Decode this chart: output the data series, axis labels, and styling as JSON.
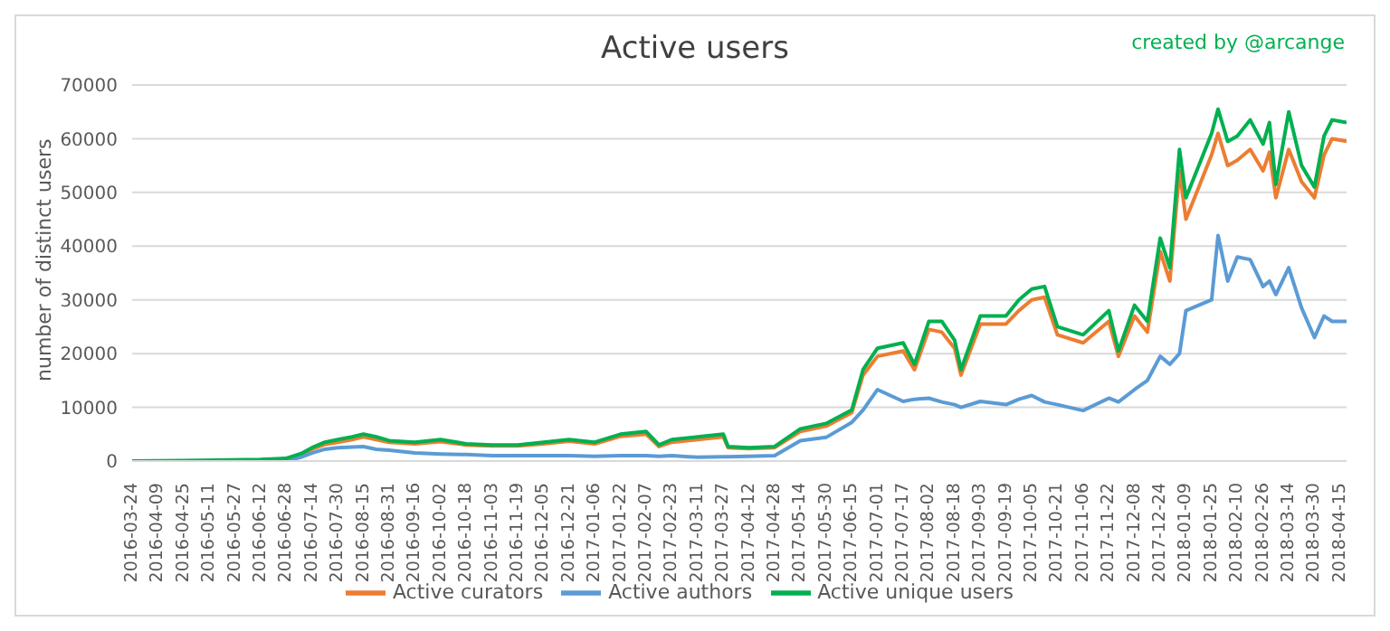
{
  "chart_data": {
    "type": "line",
    "title": "Active users",
    "ylabel": "number of distinct users",
    "annotations": [
      "created by @arcange"
    ],
    "x": [
      "2016-03-24",
      "2016-04-25",
      "2016-06-12",
      "2016-06-28",
      "2016-07-08",
      "2016-07-14",
      "2016-07-22",
      "2016-07-30",
      "2016-08-08",
      "2016-08-15",
      "2016-08-23",
      "2016-08-31",
      "2016-09-16",
      "2016-10-02",
      "2016-10-18",
      "2016-11-03",
      "2016-11-19",
      "2016-12-05",
      "2016-12-21",
      "2017-01-06",
      "2017-01-22",
      "2017-02-07",
      "2017-02-15",
      "2017-02-23",
      "2017-03-11",
      "2017-03-27",
      "2017-03-30",
      "2017-04-12",
      "2017-04-28",
      "2017-05-14",
      "2017-05-30",
      "2017-06-15",
      "2017-06-22",
      "2017-07-01",
      "2017-07-17",
      "2017-07-24",
      "2017-08-02",
      "2017-08-10",
      "2017-08-18",
      "2017-08-22",
      "2017-09-03",
      "2017-09-19",
      "2017-09-27",
      "2017-10-05",
      "2017-10-13",
      "2017-10-21",
      "2017-11-06",
      "2017-11-22",
      "2017-11-28",
      "2017-12-08",
      "2017-12-16",
      "2017-12-24",
      "2017-12-30",
      "2018-01-05",
      "2018-01-09",
      "2018-01-17",
      "2018-01-25",
      "2018-01-29",
      "2018-02-04",
      "2018-02-10",
      "2018-02-18",
      "2018-02-26",
      "2018-03-02",
      "2018-03-06",
      "2018-03-14",
      "2018-03-22",
      "2018-03-30",
      "2018-04-05",
      "2018-04-10",
      "2018-04-19"
    ],
    "series": [
      {
        "name": "Active curators",
        "color": "#ed7d31",
        "values": [
          null,
          null,
          null,
          500,
          1300,
          2200,
          3100,
          3500,
          4000,
          4500,
          4000,
          3500,
          3200,
          3600,
          3000,
          2800,
          2800,
          3200,
          3700,
          3200,
          4600,
          5000,
          2700,
          3500,
          4000,
          4500,
          2500,
          2300,
          2500,
          5500,
          6500,
          9000,
          16000,
          19500,
          20500,
          17000,
          24500,
          24000,
          21000,
          16000,
          25500,
          25500,
          28000,
          30000,
          30500,
          23500,
          22000,
          26000,
          19500,
          27000,
          24000,
          39000,
          33500,
          54000,
          45000,
          51000,
          57000,
          61000,
          55000,
          56000,
          58000,
          54000,
          57500,
          49000,
          58000,
          52000,
          49000,
          57000,
          60000,
          59500
        ]
      },
      {
        "name": "Active authors",
        "color": "#5b9bd5",
        "values": [
          null,
          null,
          null,
          0,
          800,
          1500,
          2200,
          2500,
          2600,
          2700,
          2200,
          2000,
          1500,
          1300,
          1200,
          1000,
          1000,
          1000,
          1000,
          900,
          1000,
          1000,
          900,
          1000,
          700,
          800,
          800,
          900,
          1000,
          3800,
          4400,
          7200,
          9500,
          13300,
          11100,
          11500,
          11700,
          11000,
          10500,
          10000,
          11100,
          10500,
          11500,
          12200,
          11000,
          10500,
          9400,
          11700,
          11000,
          13300,
          15000,
          19500,
          18000,
          20000,
          28000,
          29000,
          30000,
          42000,
          33500,
          38000,
          37500,
          32500,
          33500,
          31000,
          36000,
          28500,
          23000,
          27000,
          26000,
          26000
        ]
      },
      {
        "name": "Active unique users",
        "color": "#00b050",
        "values": [
          0,
          100,
          300,
          500,
          1500,
          2500,
          3500,
          4000,
          4500,
          5000,
          4500,
          3800,
          3500,
          4000,
          3200,
          3000,
          3000,
          3500,
          4000,
          3500,
          5000,
          5500,
          3000,
          4000,
          4500,
          5000,
          2700,
          2500,
          2700,
          6000,
          7000,
          9500,
          17000,
          21000,
          22000,
          18000,
          26000,
          26000,
          22500,
          17000,
          27000,
          27000,
          30000,
          32000,
          32500,
          25000,
          23500,
          28000,
          20500,
          29000,
          26000,
          41500,
          36000,
          58000,
          49000,
          55000,
          61000,
          65500,
          59500,
          60500,
          63500,
          59000,
          63000,
          51500,
          65000,
          55000,
          51000,
          60500,
          63500,
          63000
        ]
      }
    ],
    "xlim": [
      "2016-03-24",
      "2018-04-19"
    ],
    "xticks": [
      "2016-03-24",
      "2016-04-09",
      "2016-04-25",
      "2016-05-11",
      "2016-05-27",
      "2016-06-12",
      "2016-06-28",
      "2016-07-14",
      "2016-07-30",
      "2016-08-15",
      "2016-08-31",
      "2016-09-16",
      "2016-10-02",
      "2016-10-18",
      "2016-11-03",
      "2016-11-19",
      "2016-12-05",
      "2016-12-21",
      "2017-01-06",
      "2017-01-22",
      "2017-02-07",
      "2017-02-23",
      "2017-03-11",
      "2017-03-27",
      "2017-04-12",
      "2017-04-28",
      "2017-05-14",
      "2017-05-30",
      "2017-06-15",
      "2017-07-01",
      "2017-07-17",
      "2017-08-02",
      "2017-08-18",
      "2017-09-03",
      "2017-09-19",
      "2017-10-05",
      "2017-10-21",
      "2017-11-06",
      "2017-11-22",
      "2017-12-08",
      "2017-12-24",
      "2018-01-09",
      "2018-01-25",
      "2018-02-10",
      "2018-02-26",
      "2018-03-14",
      "2018-03-30",
      "2018-04-15"
    ],
    "ylim": [
      0,
      70000
    ],
    "yticks": [
      0,
      10000,
      20000,
      30000,
      40000,
      50000,
      60000,
      70000
    ],
    "grid": "y",
    "legend": "bottom",
    "line_style": "solid"
  }
}
